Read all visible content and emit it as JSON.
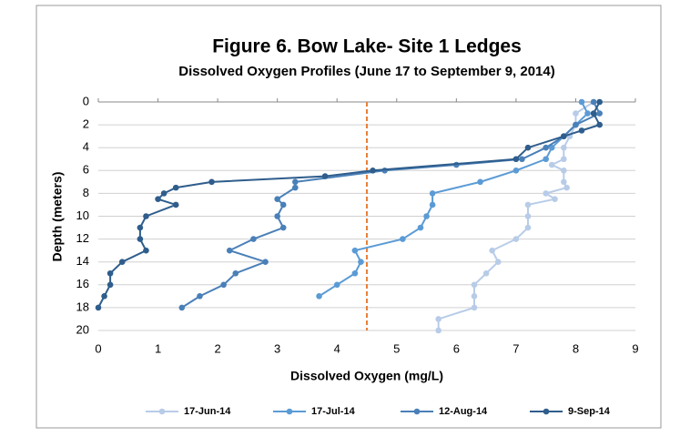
{
  "chart_data": {
    "type": "line",
    "title": "Figure 6. Bow Lake- Site 1 Ledges",
    "subtitle": "Dissolved Oxygen Profiles (June 17 to September 9, 2014)",
    "x_label": "Dissolved Oxygen (mg/L)",
    "y_label": "Depth (meters)",
    "xlim": [
      0,
      9
    ],
    "xticks": [
      0,
      1,
      2,
      3,
      4,
      5,
      6,
      7,
      8,
      9
    ],
    "ylim": [
      20,
      0
    ],
    "yticks": [
      0,
      2,
      4,
      6,
      8,
      10,
      12,
      14,
      16,
      18,
      20
    ],
    "y_inverted": true,
    "grid": true,
    "legend": "bottom",
    "vline": {
      "x": 4.5,
      "color": "#e8803a"
    },
    "series": [
      {
        "name": "17-Jun-14",
        "color": "#b8cce8",
        "x": [
          8.3,
          8.0,
          8.0,
          7.9,
          7.8,
          7.8,
          7.6,
          7.8,
          7.8,
          7.85,
          7.5,
          7.65,
          7.2,
          7.2,
          7.2,
          7.0,
          6.6,
          6.7,
          6.5,
          6.3,
          6.3,
          6.3,
          5.7,
          5.7
        ],
        "values": [
          0,
          1,
          2,
          3,
          4,
          5,
          5.5,
          6,
          7,
          7.5,
          8,
          8.5,
          9,
          10,
          11,
          12,
          13,
          14,
          15,
          16,
          17,
          18,
          19,
          20
        ]
      },
      {
        "name": "17-Jul-14",
        "color": "#5b9bd5",
        "x": [
          8.1,
          8.2,
          8.0,
          7.8,
          7.6,
          7.5,
          7.0,
          6.4,
          5.6,
          5.6,
          5.5,
          5.4,
          5.1,
          4.3,
          4.4,
          4.3,
          4.0,
          3.7
        ],
        "values": [
          0,
          1,
          2,
          3,
          4,
          5,
          6,
          7,
          8,
          9,
          10,
          11,
          12,
          13,
          14,
          15,
          16,
          17
        ]
      },
      {
        "name": "12-Aug-14",
        "color": "#4a80b8",
        "x": [
          8.3,
          8.4,
          8.0,
          7.8,
          7.5,
          7.1,
          6.0,
          4.8,
          3.3,
          3.3,
          3.0,
          3.1,
          3.0,
          3.1,
          2.6,
          2.2,
          2.8,
          2.3,
          2.1,
          1.7,
          1.4
        ],
        "values": [
          0,
          1,
          2,
          3,
          4,
          5,
          5.5,
          6,
          7,
          7.5,
          8.5,
          9,
          10,
          11,
          12,
          13,
          14,
          15,
          16,
          17,
          18
        ]
      },
      {
        "name": "9-Sep-14",
        "color": "#2f5d8c",
        "x": [
          8.4,
          8.3,
          8.4,
          8.1,
          7.8,
          7.2,
          7.0,
          4.6,
          3.8,
          1.9,
          1.3,
          1.1,
          1.0,
          1.3,
          0.8,
          0.7,
          0.7,
          0.8,
          0.4,
          0.2,
          0.2,
          0.1,
          0.0
        ],
        "values": [
          0,
          1,
          2,
          2.5,
          3,
          4,
          5,
          6,
          6.5,
          7,
          7.5,
          8,
          8.5,
          9,
          10,
          11,
          12,
          13,
          14,
          15,
          16,
          17,
          18
        ]
      }
    ]
  }
}
